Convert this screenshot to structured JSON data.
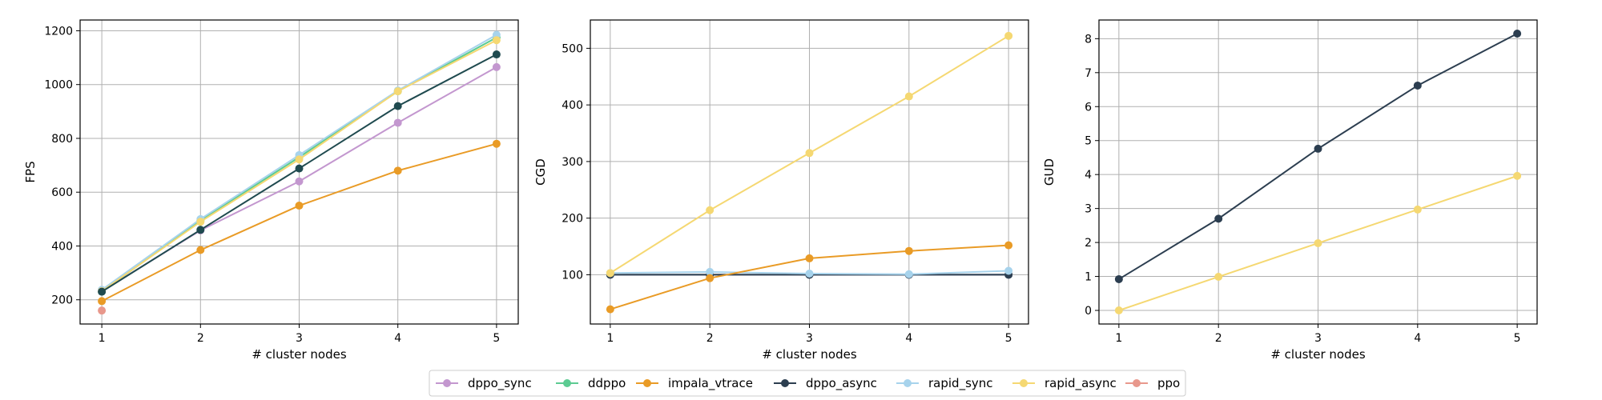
{
  "chart_data": [
    {
      "type": "line",
      "xlabel": "# cluster nodes",
      "ylabel": "FPS",
      "xlim": [
        0.78,
        5.22
      ],
      "ylim": [
        110,
        1240
      ],
      "xticks": [
        1,
        2,
        3,
        4,
        5
      ],
      "yticks": [
        200,
        400,
        600,
        800,
        1000,
        1200
      ],
      "grid": true,
      "series": [
        {
          "name": "dppo_sync",
          "x": [
            1,
            2,
            3,
            4,
            5
          ],
          "values": [
            232,
            458,
            640,
            858,
            1065
          ]
        },
        {
          "name": "ddppo",
          "x": [
            1,
            2,
            3,
            4,
            5
          ],
          "values": [
            230,
            495,
            730,
            975,
            1175
          ]
        },
        {
          "name": "impala_vtrace",
          "x": [
            1,
            2,
            3,
            4,
            5
          ],
          "values": [
            195,
            385,
            550,
            680,
            780
          ]
        },
        {
          "name": "rapid_sync",
          "x": [
            1,
            2,
            3,
            4,
            5
          ],
          "values": [
            237,
            500,
            738,
            978,
            1185
          ]
        },
        {
          "name": "rapid_async",
          "x": [
            1,
            2,
            3,
            4,
            5
          ],
          "values": [
            232,
            490,
            722,
            975,
            1165
          ]
        },
        {
          "name": "dppo_async",
          "x": [
            1,
            2,
            3,
            4,
            5
          ],
          "values": [
            230,
            460,
            688,
            920,
            1112
          ]
        },
        {
          "name": "ppo",
          "x": [
            1
          ],
          "values": [
            160
          ]
        }
      ]
    },
    {
      "type": "line",
      "xlabel": "# cluster nodes",
      "ylabel": "CGD",
      "xlim": [
        0.8,
        5.2
      ],
      "ylim": [
        13,
        550
      ],
      "xticks": [
        1,
        2,
        3,
        4,
        5
      ],
      "yticks": [
        100,
        200,
        300,
        400,
        500
      ],
      "grid": true,
      "series": [
        {
          "name": "ddppo",
          "x": [
            1,
            2,
            3,
            4,
            5
          ],
          "values": [
            100,
            100,
            100,
            100,
            100
          ]
        },
        {
          "name": "dppo_sync",
          "x": [
            1,
            2,
            3,
            4,
            5
          ],
          "values": [
            100,
            100,
            100,
            100,
            100
          ]
        },
        {
          "name": "dppo_async",
          "x": [
            1,
            2,
            3,
            4,
            5
          ],
          "values": [
            100,
            100,
            100,
            100,
            100
          ]
        },
        {
          "name": "rapid_sync",
          "x": [
            1,
            2,
            3,
            4,
            5
          ],
          "values": [
            103,
            105,
            102,
            101,
            107
          ]
        },
        {
          "name": "impala_vtrace",
          "x": [
            1,
            2,
            3,
            4,
            5
          ],
          "values": [
            39,
            94,
            129,
            142,
            152
          ]
        },
        {
          "name": "rapid_async",
          "x": [
            1,
            2,
            3,
            4,
            5
          ],
          "values": [
            103,
            214,
            315,
            415,
            522
          ]
        }
      ]
    },
    {
      "type": "line",
      "xlabel": "# cluster nodes",
      "ylabel": "GUD",
      "xlim": [
        0.8,
        5.2
      ],
      "ylim": [
        -0.4,
        8.55
      ],
      "xticks": [
        1,
        2,
        3,
        4,
        5
      ],
      "yticks": [
        0,
        1,
        2,
        3,
        4,
        5,
        6,
        7,
        8
      ],
      "grid": true,
      "series": [
        {
          "name": "rapid_async",
          "x": [
            1,
            2,
            3,
            4,
            5
          ],
          "values": [
            0,
            0.99,
            1.98,
            2.97,
            3.96
          ]
        },
        {
          "name": "dppo_async",
          "x": [
            1,
            2,
            3,
            4,
            5
          ],
          "values": [
            0.92,
            2.7,
            4.76,
            6.62,
            8.15
          ]
        }
      ]
    }
  ],
  "legend": {
    "placement": "bottom-center",
    "entries": [
      {
        "name": "dppo_sync",
        "color": "#c397cf"
      },
      {
        "name": "ddppo",
        "color": "#5ccb92"
      },
      {
        "name": "impala_vtrace",
        "color": "#e99b26"
      },
      {
        "name": "dppo_async",
        "color": "#2c3e50"
      },
      {
        "name": "rapid_sync",
        "color": "#a7d3ec"
      },
      {
        "name": "rapid_async",
        "color": "#f5d872"
      },
      {
        "name": "ppo",
        "color": "#e8988c"
      }
    ]
  },
  "series_colors": {
    "dppo_sync": "#c397cf",
    "ddppo": "#5ccb92",
    "impala_vtrace": "#e99b26",
    "dppo_async": "#2c3e50",
    "rapid_sync": "#a7d3ec",
    "rapid_async": "#f5d872",
    "ppo": "#e8988c"
  },
  "series_colors_alt": {
    "dppo_async": "#1f4a4f"
  }
}
